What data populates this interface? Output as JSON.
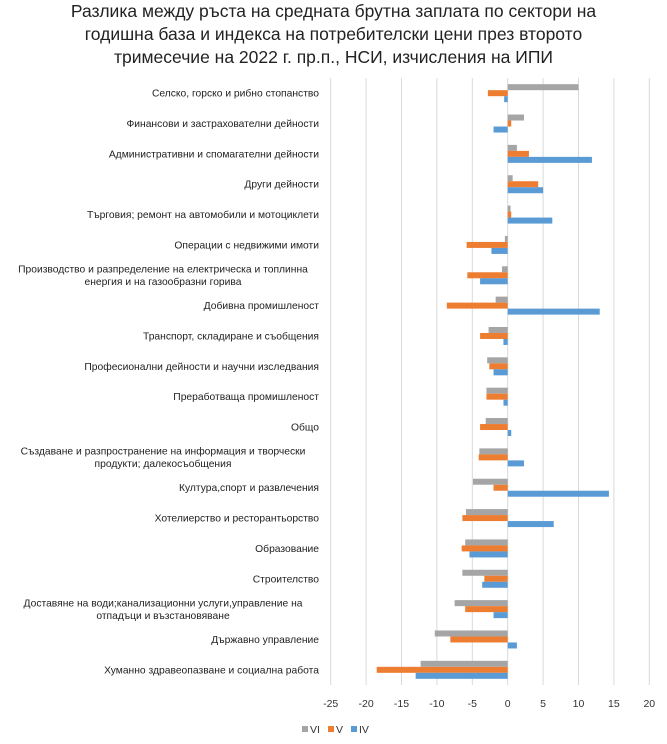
{
  "chart_data": {
    "type": "bar",
    "orientation": "horizontal",
    "title": "Разлика между ръста на средната брутна заплата по сектори на годишна база и индекса на потребителски цени през второто тримесечие на 2022 г. пр.п., НСИ, изчисления на ИПИ",
    "title_lines": [
      "Разлика между ръста на средната брутна заплата по сектори на",
      "годишна база и индекса на потребителски цени през второто",
      "тримесечие на 2022 г. пр.п., НСИ, изчисления на ИПИ"
    ],
    "xlabel": "",
    "ylabel": "",
    "xlim": [
      -25,
      20
    ],
    "xticks": [
      -25,
      -20,
      -15,
      -10,
      -5,
      0,
      5,
      10,
      15,
      20
    ],
    "grid": "vertical",
    "legend_position": "bottom",
    "categories": [
      "Селско, горско и рибно стопанство",
      "Финансови и застрахователни дейности",
      "Административни и спомагателни дейности",
      "Други дейности",
      "Търговия; ремонт на автомобили и мотоциклети",
      "Операции с недвижими имоти",
      "Производство и разпределение на електрическа и топлинна енергия и на газообразни горива",
      "Добивна промишленост",
      "Транспорт, складиране и съобщения",
      "Професионални дейности и научни изследвания",
      "Преработваща промишленост",
      "Общо",
      "Създаване и разпространение на информация и творчески продукти; далекосъобщения",
      "Култура,спорт и развлечения",
      "Хотелиерство и ресторантьорство",
      "Образование",
      "Строителство",
      "Доставяне на води;канализационни услуги,управление на отпадъци и възстановяване",
      "Държавно управление",
      "Хуманно здравеопазване и социална работа"
    ],
    "category_label_lines": [
      [
        "Селско, горско и рибно стопанство"
      ],
      [
        "Финансови и застрахователни дейности"
      ],
      [
        "Административни и спомагателни дейности"
      ],
      [
        "Други дейности"
      ],
      [
        "Търговия; ремонт на автомобили и мотоциклети"
      ],
      [
        "Операции с недвижими имоти"
      ],
      [
        "Производство и разпределение на електрическа и топлинна",
        "енергия и на газообразни горива"
      ],
      [
        "Добивна промишленост"
      ],
      [
        "Транспорт, складиране и съобщения"
      ],
      [
        "Професионални дейности и научни изследвания"
      ],
      [
        "Преработваща промишленост"
      ],
      [
        "Общо"
      ],
      [
        "Създаване и разпространение на информация и творчески",
        "продукти; далекосъобщения"
      ],
      [
        "Култура,спорт и развлечения"
      ],
      [
        "Хотелиерство и ресторантьорство"
      ],
      [
        "Образование"
      ],
      [
        "Строителство"
      ],
      [
        "Доставяне на води;канализационни услуги,управление на",
        "отпадъци и възстановяване"
      ],
      [
        "Държавно управление"
      ],
      [
        "Хуманно здравеопазване и социална работа"
      ]
    ],
    "series": [
      {
        "name": "VI",
        "color": "#A5A5A5",
        "values": [
          10.0,
          2.3,
          1.3,
          0.7,
          0.4,
          -0.4,
          -0.8,
          -1.7,
          -2.7,
          -2.9,
          -3.0,
          -3.1,
          -4.0,
          -4.9,
          -5.9,
          -6.0,
          -6.4,
          -7.5,
          -10.3,
          -12.3
        ]
      },
      {
        "name": "V",
        "color": "#ED7D31",
        "values": [
          -2.8,
          0.5,
          3.0,
          4.3,
          0.5,
          -5.8,
          -5.7,
          -8.6,
          -3.9,
          -2.6,
          -3.0,
          -3.9,
          -4.1,
          -2.0,
          -6.4,
          -6.5,
          -3.3,
          -6.0,
          -8.1,
          -18.5
        ]
      },
      {
        "name": "IV",
        "color": "#5B9BD5",
        "values": [
          -0.5,
          -2.0,
          11.9,
          5.0,
          6.3,
          -2.3,
          -3.9,
          13.0,
          -0.6,
          -2.0,
          -0.6,
          0.5,
          2.3,
          14.3,
          6.5,
          -5.4,
          -3.6,
          -2.0,
          1.3,
          -13.0
        ]
      }
    ],
    "gridline_color": "#D9D9D9"
  }
}
